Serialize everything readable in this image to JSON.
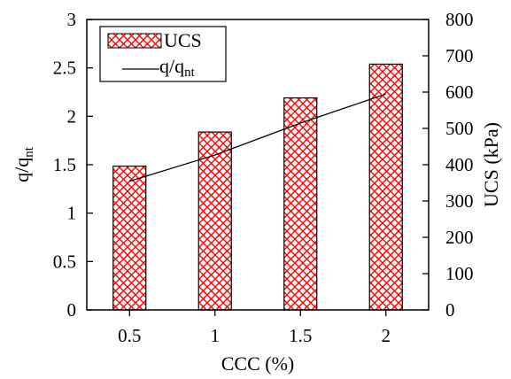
{
  "chart_data": {
    "type": "bar",
    "categories": [
      "0.5",
      "1",
      "1.5",
      "2"
    ],
    "xlabel": "CCC (%)",
    "x_ticks": [
      "0.5",
      "1",
      "1.5",
      "2"
    ],
    "y_left": {
      "label_main": "q/q",
      "label_sub": "nt",
      "lim": [
        0,
        3
      ],
      "ticks": [
        "0",
        "0.5",
        "1",
        "1.5",
        "2",
        "2.5",
        "3"
      ]
    },
    "y_right": {
      "label": "UCS (kPa)",
      "lim": [
        0,
        800
      ],
      "ticks": [
        "0",
        "100",
        "200",
        "300",
        "400",
        "500",
        "600",
        "700",
        "800"
      ]
    },
    "series": [
      {
        "name": "UCS",
        "type": "bar",
        "axis": "right",
        "values": [
          396,
          490,
          584,
          677
        ],
        "fill_pattern": "red-crosshatch",
        "color": "#ff0000"
      },
      {
        "name": "q/q",
        "name_sub": "nt",
        "type": "line",
        "axis": "left",
        "values": [
          1.33,
          1.6,
          1.93,
          2.23
        ],
        "color": "#000000"
      }
    ],
    "legend": {
      "position": "top-left",
      "items": [
        {
          "label": "UCS"
        },
        {
          "label_main": "q/q",
          "label_sub": "nt"
        }
      ]
    },
    "grid": false
  }
}
